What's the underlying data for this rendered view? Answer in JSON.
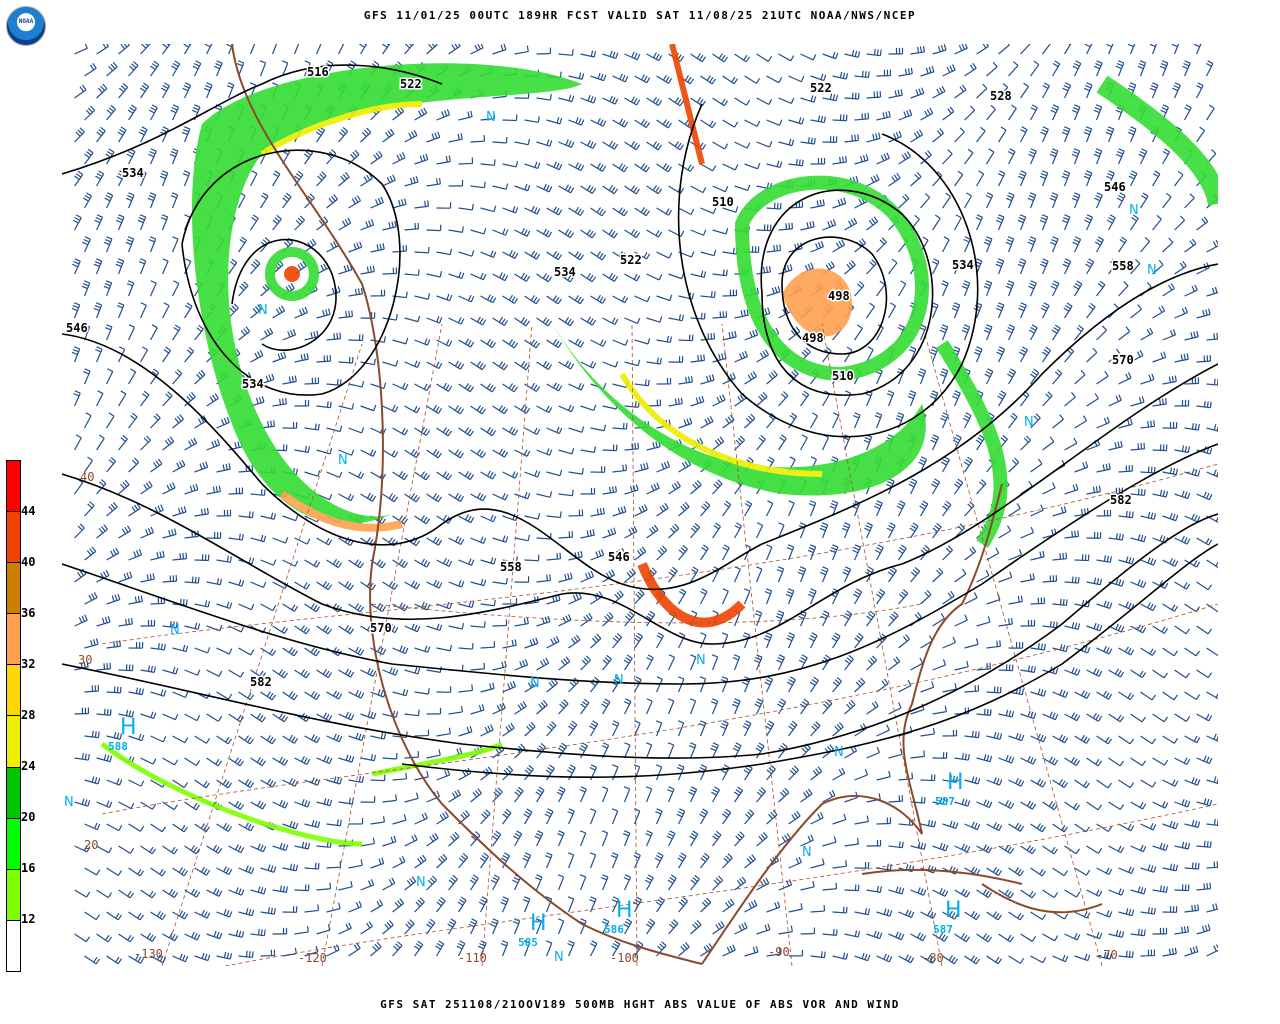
{
  "header": {
    "title": "GFS 11/01/25 00UTC 189HR FCST VALID SAT 11/08/25 21UTC NOAA/NWS/NCEP",
    "logo_text": "NOAA"
  },
  "footer": {
    "caption": "GFS SAT 251108/21OOV189 500MB HGHT ABS VALUE OF ABS VOR AND WIND"
  },
  "colorbar": {
    "labels": [
      "44",
      "40",
      "36",
      "32",
      "28",
      "24",
      "20",
      "16",
      "12"
    ],
    "colors": [
      "#ff0000",
      "#ee4400",
      "#cc8000",
      "#ffa050",
      "#ffd700",
      "#eeee00",
      "#00c800",
      "#00ff00",
      "#80ff00",
      "#ffffff"
    ]
  },
  "map": {
    "height_labels": [
      "534",
      "516",
      "522",
      "522",
      "528",
      "546",
      "534",
      "558",
      "570",
      "582",
      "510",
      "522",
      "534",
      "498",
      "498",
      "510",
      "546",
      "534",
      "558",
      "546",
      "570",
      "582"
    ],
    "pressure_centers": [
      {
        "symbol": "H",
        "value": "588"
      },
      {
        "symbol": "H",
        "value": "587"
      },
      {
        "symbol": "H",
        "value": "586"
      },
      {
        "symbol": "H",
        "value": "585"
      },
      {
        "symbol": "H",
        "value": "587"
      }
    ],
    "n_marker": "N",
    "longitude_labels": [
      "-130",
      "-120",
      "-110",
      "-100",
      "-90",
      "-80",
      "-70"
    ],
    "latitude_labels": [
      "40",
      "30",
      "20"
    ],
    "colors": {
      "contour": "#000000",
      "coast": "#8b4a2b",
      "barb": "#1f4f8f",
      "marker": "#00b0f0"
    }
  }
}
